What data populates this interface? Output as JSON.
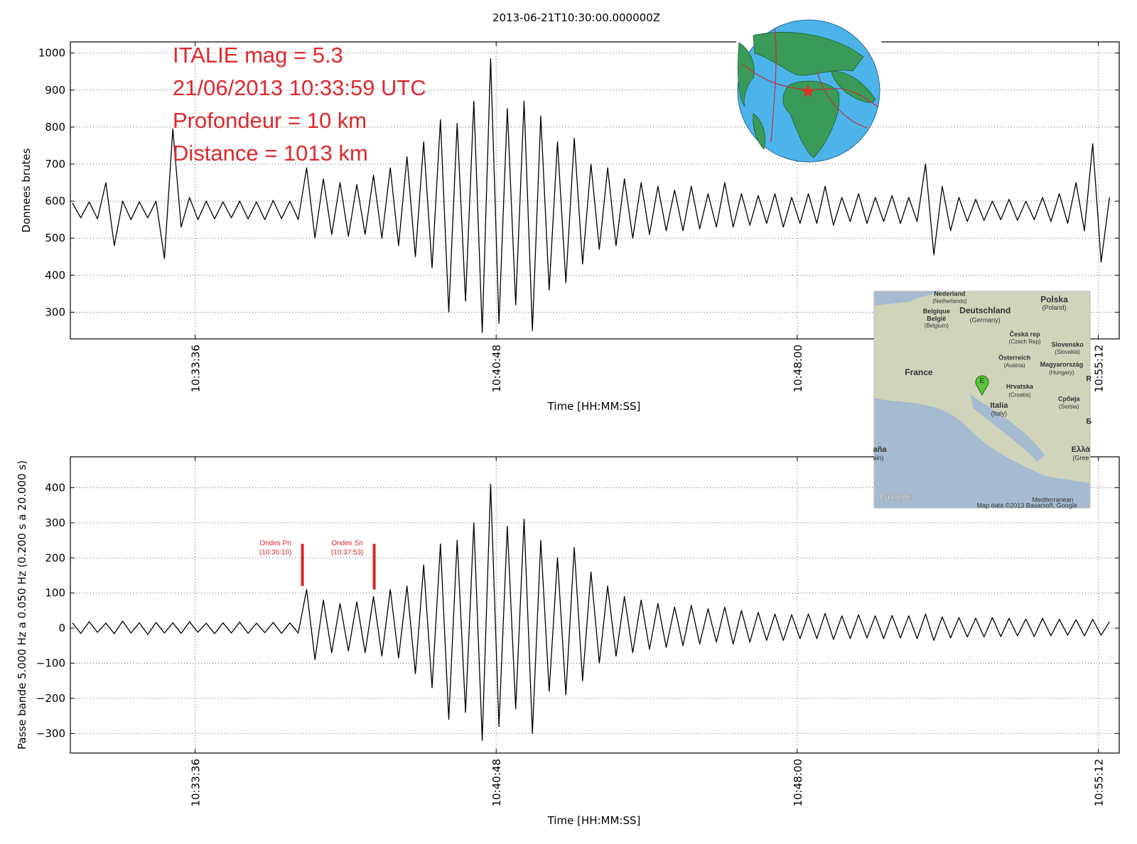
{
  "chart_data": [
    {
      "type": "line",
      "title": "2013-06-21T10:30:00.000000Z",
      "ylabel": "Donnees brutes",
      "xlabel": "Time [HH:MM:SS]",
      "annotations": [
        "ITALIE mag = 5.3",
        "21/06/2013 10:33:59 UTC",
        "Profondeur = 10 km",
        "Distance = 1013 km"
      ],
      "annotation_color": "#e0282d",
      "x": [
        40,
        52,
        64,
        76,
        88,
        100,
        112,
        124,
        136,
        148,
        160,
        172,
        184,
        196,
        208,
        220,
        232,
        244,
        256,
        268,
        280,
        292,
        304,
        316,
        328,
        340,
        352,
        364,
        376,
        388,
        400,
        412,
        424,
        436,
        448,
        460,
        472,
        484,
        496,
        508,
        520,
        532,
        544,
        556,
        568,
        580,
        592,
        604,
        616,
        628,
        640,
        652,
        664,
        676,
        688,
        700,
        712,
        724,
        736,
        748,
        760,
        772,
        784,
        796,
        808,
        820,
        832,
        844,
        856,
        868,
        880,
        892,
        904,
        916,
        928,
        940,
        952,
        964,
        976,
        988,
        1000,
        1012,
        1024,
        1036,
        1048,
        1060,
        1072,
        1084,
        1096,
        1108,
        1120,
        1132,
        1144,
        1156,
        1168,
        1180,
        1192,
        1204,
        1216,
        1228,
        1240,
        1252,
        1264,
        1276,
        1288,
        1300,
        1312,
        1324,
        1336,
        1348,
        1360,
        1372,
        1384,
        1396,
        1408,
        1420,
        1432,
        1444,
        1456,
        1468,
        1480,
        1492,
        1504,
        1516,
        1528
      ],
      "series": [
        {
          "color": "#000000",
          "values": [
            595,
            555,
            598,
            552,
            650,
            480,
            600,
            550,
            598,
            555,
            600,
            445,
            795,
            530,
            610,
            550,
            600,
            552,
            598,
            555,
            600,
            552,
            598,
            550,
            602,
            553,
            600,
            550,
            690,
            500,
            660,
            510,
            650,
            505,
            645,
            510,
            670,
            500,
            690,
            480,
            720,
            450,
            760,
            420,
            820,
            300,
            810,
            330,
            870,
            245,
            985,
            270,
            850,
            320,
            870,
            250,
            830,
            360,
            760,
            380,
            770,
            430,
            700,
            470,
            690,
            480,
            660,
            500,
            650,
            510,
            640,
            520,
            630,
            520,
            640,
            525,
            620,
            530,
            650,
            530,
            620,
            535,
            615,
            540,
            620,
            530,
            610,
            540,
            620,
            540,
            640,
            535,
            610,
            545,
            620,
            540,
            610,
            545,
            615,
            540,
            610,
            545,
            700,
            455,
            640,
            520,
            610,
            545,
            605,
            548,
            600,
            550,
            605,
            548,
            600,
            550,
            610,
            545,
            620,
            540,
            650,
            520,
            755,
            435,
            610
          ]
        }
      ],
      "xlim": [
        37,
        1542
      ],
      "ylim": [
        228,
        1030
      ],
      "xticks": [
        {
          "value": 216,
          "label": "10:33:36"
        },
        {
          "value": 648,
          "label": "10:40:48"
        },
        {
          "value": 1080,
          "label": "10:48:00"
        },
        {
          "value": 1512,
          "label": "10:55:12"
        }
      ],
      "yticks": [
        300,
        400,
        500,
        600,
        700,
        800,
        900,
        1000
      ],
      "grid": true
    },
    {
      "type": "line",
      "ylabel": "Passe bande 5.000 Hz a 0.050 Hz (0.200 s a 20.000 s)",
      "xlabel": "Time [HH:MM:SS]",
      "x": [
        40,
        52,
        64,
        76,
        88,
        100,
        112,
        124,
        136,
        148,
        160,
        172,
        184,
        196,
        208,
        220,
        232,
        244,
        256,
        268,
        280,
        292,
        304,
        316,
        328,
        340,
        352,
        364,
        376,
        388,
        400,
        412,
        424,
        436,
        448,
        460,
        472,
        484,
        496,
        508,
        520,
        532,
        544,
        556,
        568,
        580,
        592,
        604,
        616,
        628,
        640,
        652,
        664,
        676,
        688,
        700,
        712,
        724,
        736,
        748,
        760,
        772,
        784,
        796,
        808,
        820,
        832,
        844,
        856,
        868,
        880,
        892,
        904,
        916,
        928,
        940,
        952,
        964,
        976,
        988,
        1000,
        1012,
        1024,
        1036,
        1048,
        1060,
        1072,
        1084,
        1096,
        1108,
        1120,
        1132,
        1144,
        1156,
        1168,
        1180,
        1192,
        1204,
        1216,
        1228,
        1240,
        1252,
        1264,
        1276,
        1288,
        1300,
        1312,
        1324,
        1336,
        1348,
        1360,
        1372,
        1384,
        1396,
        1408,
        1420,
        1432,
        1444,
        1456,
        1468,
        1480,
        1492,
        1504,
        1516,
        1528
      ],
      "series": [
        {
          "color": "#000000",
          "values": [
            15,
            -15,
            18,
            -12,
            14,
            -16,
            20,
            -14,
            15,
            -18,
            16,
            -14,
            15,
            -15,
            18,
            -12,
            14,
            -16,
            15,
            -14,
            17,
            -15,
            14,
            -13,
            16,
            -15,
            15,
            -14,
            110,
            -90,
            80,
            -70,
            70,
            -65,
            75,
            -70,
            90,
            -80,
            110,
            -85,
            120,
            -130,
            180,
            -170,
            240,
            -260,
            250,
            -240,
            300,
            -320,
            410,
            -280,
            290,
            -230,
            310,
            -300,
            250,
            -180,
            200,
            -190,
            230,
            -150,
            160,
            -100,
            120,
            -80,
            90,
            -70,
            80,
            -60,
            70,
            -55,
            60,
            -50,
            65,
            -45,
            55,
            -40,
            60,
            -45,
            50,
            -40,
            45,
            -35,
            40,
            -35,
            38,
            -30,
            40,
            -30,
            42,
            -32,
            35,
            -30,
            38,
            -28,
            35,
            -30,
            36,
            -28,
            35,
            -30,
            40,
            -35,
            32,
            -28,
            30,
            -25,
            28,
            -25,
            30,
            -24,
            28,
            -22,
            26,
            -24,
            28,
            -22,
            25,
            -20,
            24,
            -22,
            25,
            -20,
            18
          ]
        }
      ],
      "picks": [
        {
          "label": "Ondes Pn",
          "time_label": "(10:36:10)",
          "x": 370,
          "y": [
            120,
            240
          ]
        },
        {
          "label": "Ondes Sn",
          "time_label": "(10:37:53)",
          "x": 473,
          "y": [
            110,
            240
          ]
        }
      ],
      "pick_color": "#d62728",
      "xlim": [
        37,
        1542
      ],
      "ylim": [
        -356,
        488
      ],
      "xticks": [
        {
          "value": 216,
          "label": "10:33:36"
        },
        {
          "value": 648,
          "label": "10:40:48"
        },
        {
          "value": 1080,
          "label": "10:48:00"
        },
        {
          "value": 1512,
          "label": "10:55:12"
        }
      ],
      "yticks": [
        {
          "value": -300,
          "label": "−300"
        },
        {
          "value": -200,
          "label": "−200"
        },
        {
          "value": -100,
          "label": "−100"
        },
        0,
        100,
        200,
        300,
        400
      ],
      "grid": true
    }
  ],
  "map_inset": {
    "marker": "E",
    "labels": [
      "Nederland",
      "(Netherlands)",
      "Belgique",
      "België",
      "(Belgium)",
      "Deutschland",
      "(Germany)",
      "Polska",
      "(Poland)",
      "Česká rep",
      "(Czech Rep)",
      "Slovensko",
      "(Slovakia)",
      "Österreich",
      "(Austria)",
      "Magyarország",
      "(Hungary)",
      "France",
      "Hrvatska",
      "(Croatia)",
      "Србија",
      "(Serbia)",
      "Italia",
      "(Italy)",
      "aña",
      "ain)",
      "Ελλά",
      "(Gree",
      "R",
      "Б",
      "Mediterranean",
      "Google",
      "Map data ©2013 Basarsoft, Google"
    ]
  }
}
